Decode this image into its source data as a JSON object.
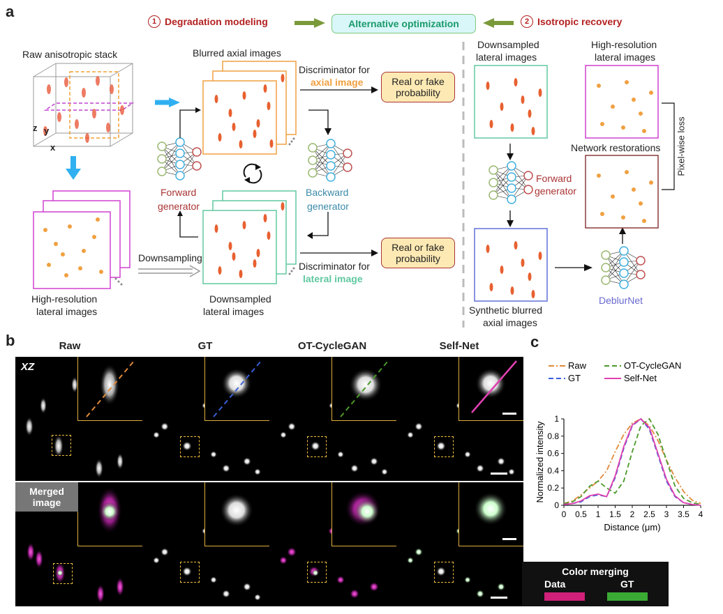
{
  "panels": {
    "a": "a",
    "b": "b",
    "c": "c"
  },
  "header": {
    "step1_num": "1",
    "step1_label": "Degradation modeling",
    "alt_label": "Alternative optimization",
    "step2_num": "2",
    "step2_label": "Isotropic recovery"
  },
  "labels": {
    "raw_stack": "Raw anisotropic stack",
    "blurred_axial": "Blurred axial images",
    "disc_axial_1": "Discriminator for",
    "disc_axial_2": "axial image",
    "real_fake_1": "Real or fake",
    "real_fake_2": "probability",
    "forward_gen_1": "Forward",
    "forward_gen_2": "generator",
    "backward_gen_1": "Backward",
    "backward_gen_2": "generator",
    "downsampling": "Downsampling",
    "disc_lateral_1": "Discriminator for",
    "disc_lateral_2": "lateral image",
    "hr_lateral_1": "High-resolution",
    "hr_lateral_2": "lateral images",
    "down_lateral_1": "Downsampled",
    "down_lateral_2": "lateral images",
    "r_down_1": "Downsampled",
    "r_down_2": "lateral images",
    "r_hr_1": "High-resolution",
    "r_hr_2": "lateral images",
    "net_restore": "Network restorations",
    "pixel_loss": "Pixel-wise loss",
    "r_fwd_1": "Forward",
    "r_fwd_2": "generator",
    "syn_blur_1": "Synthetic blurred",
    "syn_blur_2": "axial images",
    "deblurnet": "DeblurNet",
    "axis_z": "z",
    "axis_y": "y",
    "axis_x": "x"
  },
  "panel_b": {
    "columns": [
      "Raw",
      "GT",
      "OT-CycleGAN",
      "Self-Net"
    ],
    "xz": "XZ",
    "merged": "Merged image",
    "color_merging": "Color merging",
    "data": "Data",
    "gt": "GT",
    "data_color": "#d0207a",
    "gt_color": "#3aaa35"
  },
  "chart_data": {
    "type": "line",
    "xlabel": "Distance (μm)",
    "ylabel": "Normalized intensity",
    "xlim": [
      0,
      4
    ],
    "ylim": [
      0,
      1
    ],
    "xticks": [
      "0",
      "0.5",
      "1",
      "1.5",
      "2",
      "2.5",
      "3",
      "3.5",
      "4"
    ],
    "yticks": [
      "0",
      "0.2",
      "0.4",
      "0.6",
      "0.8",
      "1"
    ],
    "x": [
      0,
      0.25,
      0.5,
      0.75,
      1.0,
      1.25,
      1.5,
      1.75,
      2.0,
      2.25,
      2.5,
      2.75,
      3.0,
      3.25,
      3.5,
      3.75,
      4.0
    ],
    "series": [
      {
        "name": "Raw",
        "color": "#e08a3a",
        "dash": "dashdot",
        "values": [
          0.02,
          0.05,
          0.12,
          0.2,
          0.28,
          0.4,
          0.62,
          0.82,
          0.95,
          1.0,
          0.92,
          0.75,
          0.52,
          0.32,
          0.16,
          0.06,
          0.02
        ]
      },
      {
        "name": "GT",
        "color": "#3a5fd8",
        "dash": "dash",
        "values": [
          0.01,
          0.02,
          0.04,
          0.1,
          0.12,
          0.1,
          0.32,
          0.66,
          0.92,
          1.0,
          0.88,
          0.58,
          0.28,
          0.1,
          0.03,
          0.01,
          0.0
        ]
      },
      {
        "name": "OT-CycleGAN",
        "color": "#4a9a2a",
        "dash": "dash",
        "values": [
          0.02,
          0.04,
          0.1,
          0.22,
          0.28,
          0.2,
          0.14,
          0.28,
          0.62,
          0.92,
          1.0,
          0.82,
          0.52,
          0.22,
          0.08,
          0.03,
          0.01
        ]
      },
      {
        "name": "Self-Net",
        "color": "#e040b0",
        "dash": "solid",
        "values": [
          0.01,
          0.02,
          0.05,
          0.11,
          0.13,
          0.1,
          0.34,
          0.68,
          0.93,
          1.0,
          0.9,
          0.6,
          0.3,
          0.11,
          0.03,
          0.01,
          0.0
        ]
      }
    ]
  }
}
